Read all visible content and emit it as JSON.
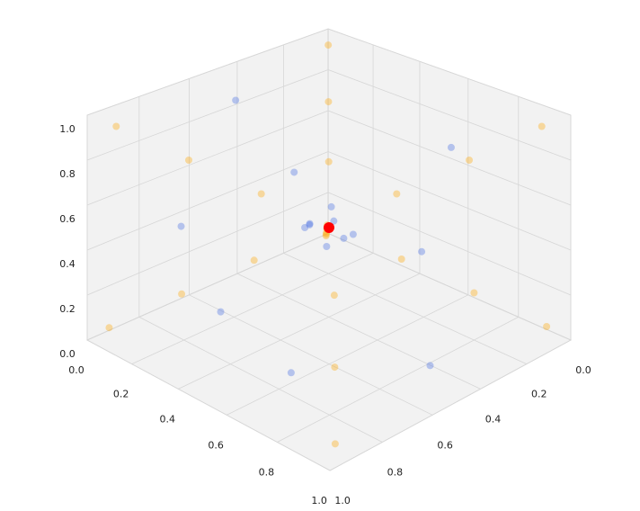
{
  "chart_data": {
    "type": "scatter3d",
    "xlim": [
      0,
      1
    ],
    "ylim": [
      0,
      1
    ],
    "zlim": [
      0,
      1
    ],
    "xticks": [
      {
        "value": 0,
        "label": "0.0"
      },
      0.2,
      0.4,
      0.6,
      0.8,
      {
        "value": 1,
        "label": "1.0"
      }
    ],
    "yticks": [
      {
        "value": 0,
        "label": "0.0"
      },
      0.2,
      0.4,
      0.6,
      0.8,
      {
        "value": 1,
        "label": "1.0"
      }
    ],
    "zticks": [
      {
        "value": 0,
        "label": "0.0"
      },
      0.2,
      0.4,
      0.6,
      0.8,
      {
        "value": 1,
        "label": "1.0"
      }
    ],
    "grid": true,
    "series": [
      {
        "color": "#4169e1",
        "x": [
          0.5,
          0.45,
          0.55,
          0.52,
          0.47,
          0.58,
          0.42,
          0.5,
          0.1,
          0.9,
          0.5,
          0.3,
          0.8,
          0.15,
          0.7,
          0.25
        ],
        "y": [
          0.48,
          0.55,
          0.45,
          0.53,
          0.46,
          0.52,
          0.5,
          0.58,
          0.5,
          0.5,
          0.1,
          0.9,
          0.3,
          0.3,
          0.85,
          0.7
        ],
        "z": [
          0.52,
          0.5,
          0.47,
          0.44,
          0.56,
          0.5,
          0.48,
          0.55,
          0.9,
          0.1,
          0.2,
          0.6,
          0.9,
          0.5,
          0.15,
          0.1
        ]
      },
      {
        "color": "#ffa500",
        "x": [
          0.35,
          0.2,
          0.05,
          0.65,
          0.8,
          0.95,
          0.34,
          0.19,
          0.04,
          0.66,
          0.81,
          0.96,
          0.35,
          0.2,
          0.05,
          0.64,
          0.79,
          0.94,
          0.36,
          0.21,
          0.06,
          0.65,
          0.8,
          0.95
        ],
        "y": [
          0.36,
          0.21,
          0.06,
          0.35,
          0.2,
          0.05,
          0.65,
          0.8,
          0.95,
          0.64,
          0.79,
          0.94,
          0.35,
          0.2,
          0.05,
          0.36,
          0.21,
          0.06,
          0.64,
          0.79,
          0.94,
          0.66,
          0.81,
          0.96
        ],
        "z": [
          0.34,
          0.19,
          0.04,
          0.36,
          0.21,
          0.06,
          0.35,
          0.2,
          0.05,
          0.35,
          0.2,
          0.05,
          0.66,
          0.81,
          0.96,
          0.65,
          0.8,
          0.95,
          0.65,
          0.8,
          0.95,
          0.64,
          0.79,
          0.94
        ]
      },
      {
        "color": "#ff0000",
        "x": [
          0.5
        ],
        "y": [
          0.5
        ],
        "z": [
          0.5
        ]
      }
    ]
  }
}
